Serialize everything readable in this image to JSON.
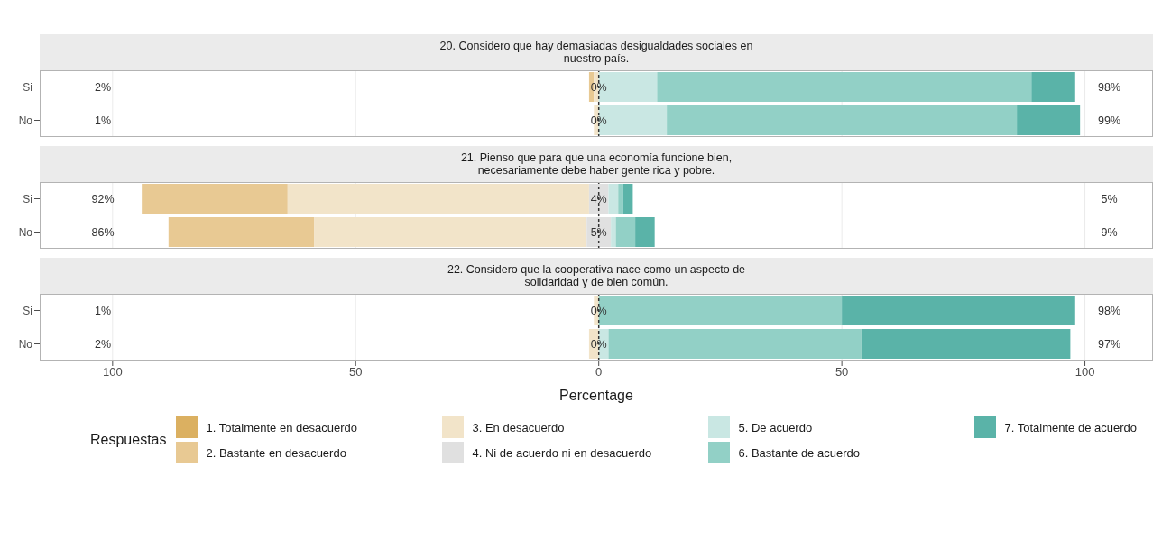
{
  "chart_data": [
    {
      "type": "bar",
      "orientation": "horizontal",
      "title": "20. Considero que hay demasiadas desigualdades sociales en nuestro país.",
      "categories": [
        "Si",
        "No"
      ],
      "xlim": [
        -115,
        114
      ],
      "xticks": [
        -100,
        -50,
        0,
        50,
        100
      ],
      "tick_labels": "y",
      "grid": "x",
      "legend": "bottom",
      "legend_title": "Respuestas",
      "ref_lines": [
        {
          "axis": "x",
          "value": 0,
          "color": "#333333",
          "line_style": "dashed"
        }
      ],
      "series": [
        {
          "name": "1. Totalmente en desacuerdo",
          "color": "#dbb061",
          "base": [
            null,
            null
          ],
          "values": [
            0,
            0
          ]
        },
        {
          "name": "2. Bastante en desacuerdo",
          "color": "#e8c993",
          "base": [
            -2,
            null
          ],
          "values": [
            1,
            0
          ]
        },
        {
          "name": "3. En desacuerdo",
          "color": "#f2e4c9",
          "base": [
            -1,
            -1
          ],
          "values": [
            1,
            1
          ]
        },
        {
          "name": "4. Ni de acuerdo ni en desacuerdo",
          "color": "#e0e0e0",
          "base": [
            null,
            null
          ],
          "values": [
            0,
            0
          ]
        },
        {
          "name": "5. De acuerdo",
          "color": "#c9e7e3",
          "base": [
            0,
            0
          ],
          "values": [
            12,
            14
          ]
        },
        {
          "name": "6. Bastante de acuerdo",
          "color": "#92d0c6",
          "base": [
            12,
            14
          ],
          "values": [
            77,
            72
          ]
        },
        {
          "name": "7. Totalmente de acuerdo",
          "color": "#5ab3a8",
          "base": [
            89,
            86
          ],
          "values": [
            9,
            13
          ]
        }
      ],
      "annotations": [
        "2%",
        "0%",
        "98%",
        "1%",
        "0%",
        "99%"
      ]
    },
    {
      "type": "bar",
      "orientation": "horizontal",
      "title": "21. Pienso que para que una economía funcione bien, necesariamente debe haber gente rica y pobre.",
      "categories": [
        "Si",
        "No"
      ],
      "xlim": [
        -115,
        114
      ],
      "xticks": [
        -100,
        -50,
        0,
        50,
        100
      ],
      "tick_labels": "y",
      "grid": "x",
      "ref_lines": [
        {
          "axis": "x",
          "value": 0,
          "color": "#333333",
          "line_style": "dashed"
        }
      ],
      "series": [
        {
          "color": "#dbb061",
          "base": [
            null,
            null
          ],
          "values": [
            0,
            0
          ]
        },
        {
          "color": "#e8c993",
          "base": [
            -94,
            -88.5
          ],
          "values": [
            30,
            30
          ]
        },
        {
          "color": "#f2e4c9",
          "base": [
            -64,
            -58.5
          ],
          "values": [
            62,
            56
          ]
        },
        {
          "color": "#e0e0e0",
          "base": [
            -2,
            -2.5
          ],
          "values": [
            4,
            5
          ]
        },
        {
          "color": "#c9e7e3",
          "base": [
            2,
            2.5
          ],
          "values": [
            2,
            1
          ]
        },
        {
          "color": "#92d0c6",
          "base": [
            4,
            3.5
          ],
          "values": [
            1,
            4
          ]
        },
        {
          "color": "#5ab3a8",
          "base": [
            5,
            7.5
          ],
          "values": [
            2,
            4
          ]
        }
      ],
      "annotations": [
        "92%",
        "4%",
        "5%",
        "86%",
        "5%",
        "9%"
      ]
    },
    {
      "type": "bar",
      "orientation": "horizontal",
      "title": "22. Considero que la cooperativa nace como un aspecto de solidaridad y de bien común.",
      "xlabel": "Percentage",
      "categories": [
        "Si",
        "No"
      ],
      "xlim": [
        -115,
        114
      ],
      "xticks": [
        {
          "value": -100,
          "label": "100"
        },
        {
          "value": -50,
          "label": "50"
        },
        0,
        50,
        100
      ],
      "grid": "x",
      "ref_lines": [
        {
          "axis": "x",
          "value": 0,
          "color": "#333333",
          "line_style": "dashed"
        }
      ],
      "series": [
        {
          "color": "#dbb061",
          "base": [
            null,
            null
          ],
          "values": [
            0,
            0
          ]
        },
        {
          "color": "#e8c993",
          "base": [
            null,
            null
          ],
          "values": [
            0,
            0
          ]
        },
        {
          "color": "#f2e4c9",
          "base": [
            -1,
            -2
          ],
          "values": [
            1,
            2
          ]
        },
        {
          "color": "#e0e0e0",
          "base": [
            null,
            null
          ],
          "values": [
            0,
            0
          ]
        },
        {
          "color": "#c9e7e3",
          "base": [
            null,
            0
          ],
          "values": [
            0,
            2
          ]
        },
        {
          "color": "#92d0c6",
          "base": [
            0,
            2
          ],
          "values": [
            50,
            52
          ]
        },
        {
          "color": "#5ab3a8",
          "base": [
            50,
            54
          ],
          "values": [
            48,
            43
          ]
        }
      ],
      "annotations": [
        "1%",
        "0%",
        "98%",
        "2%",
        "0%",
        "97%"
      ]
    }
  ]
}
